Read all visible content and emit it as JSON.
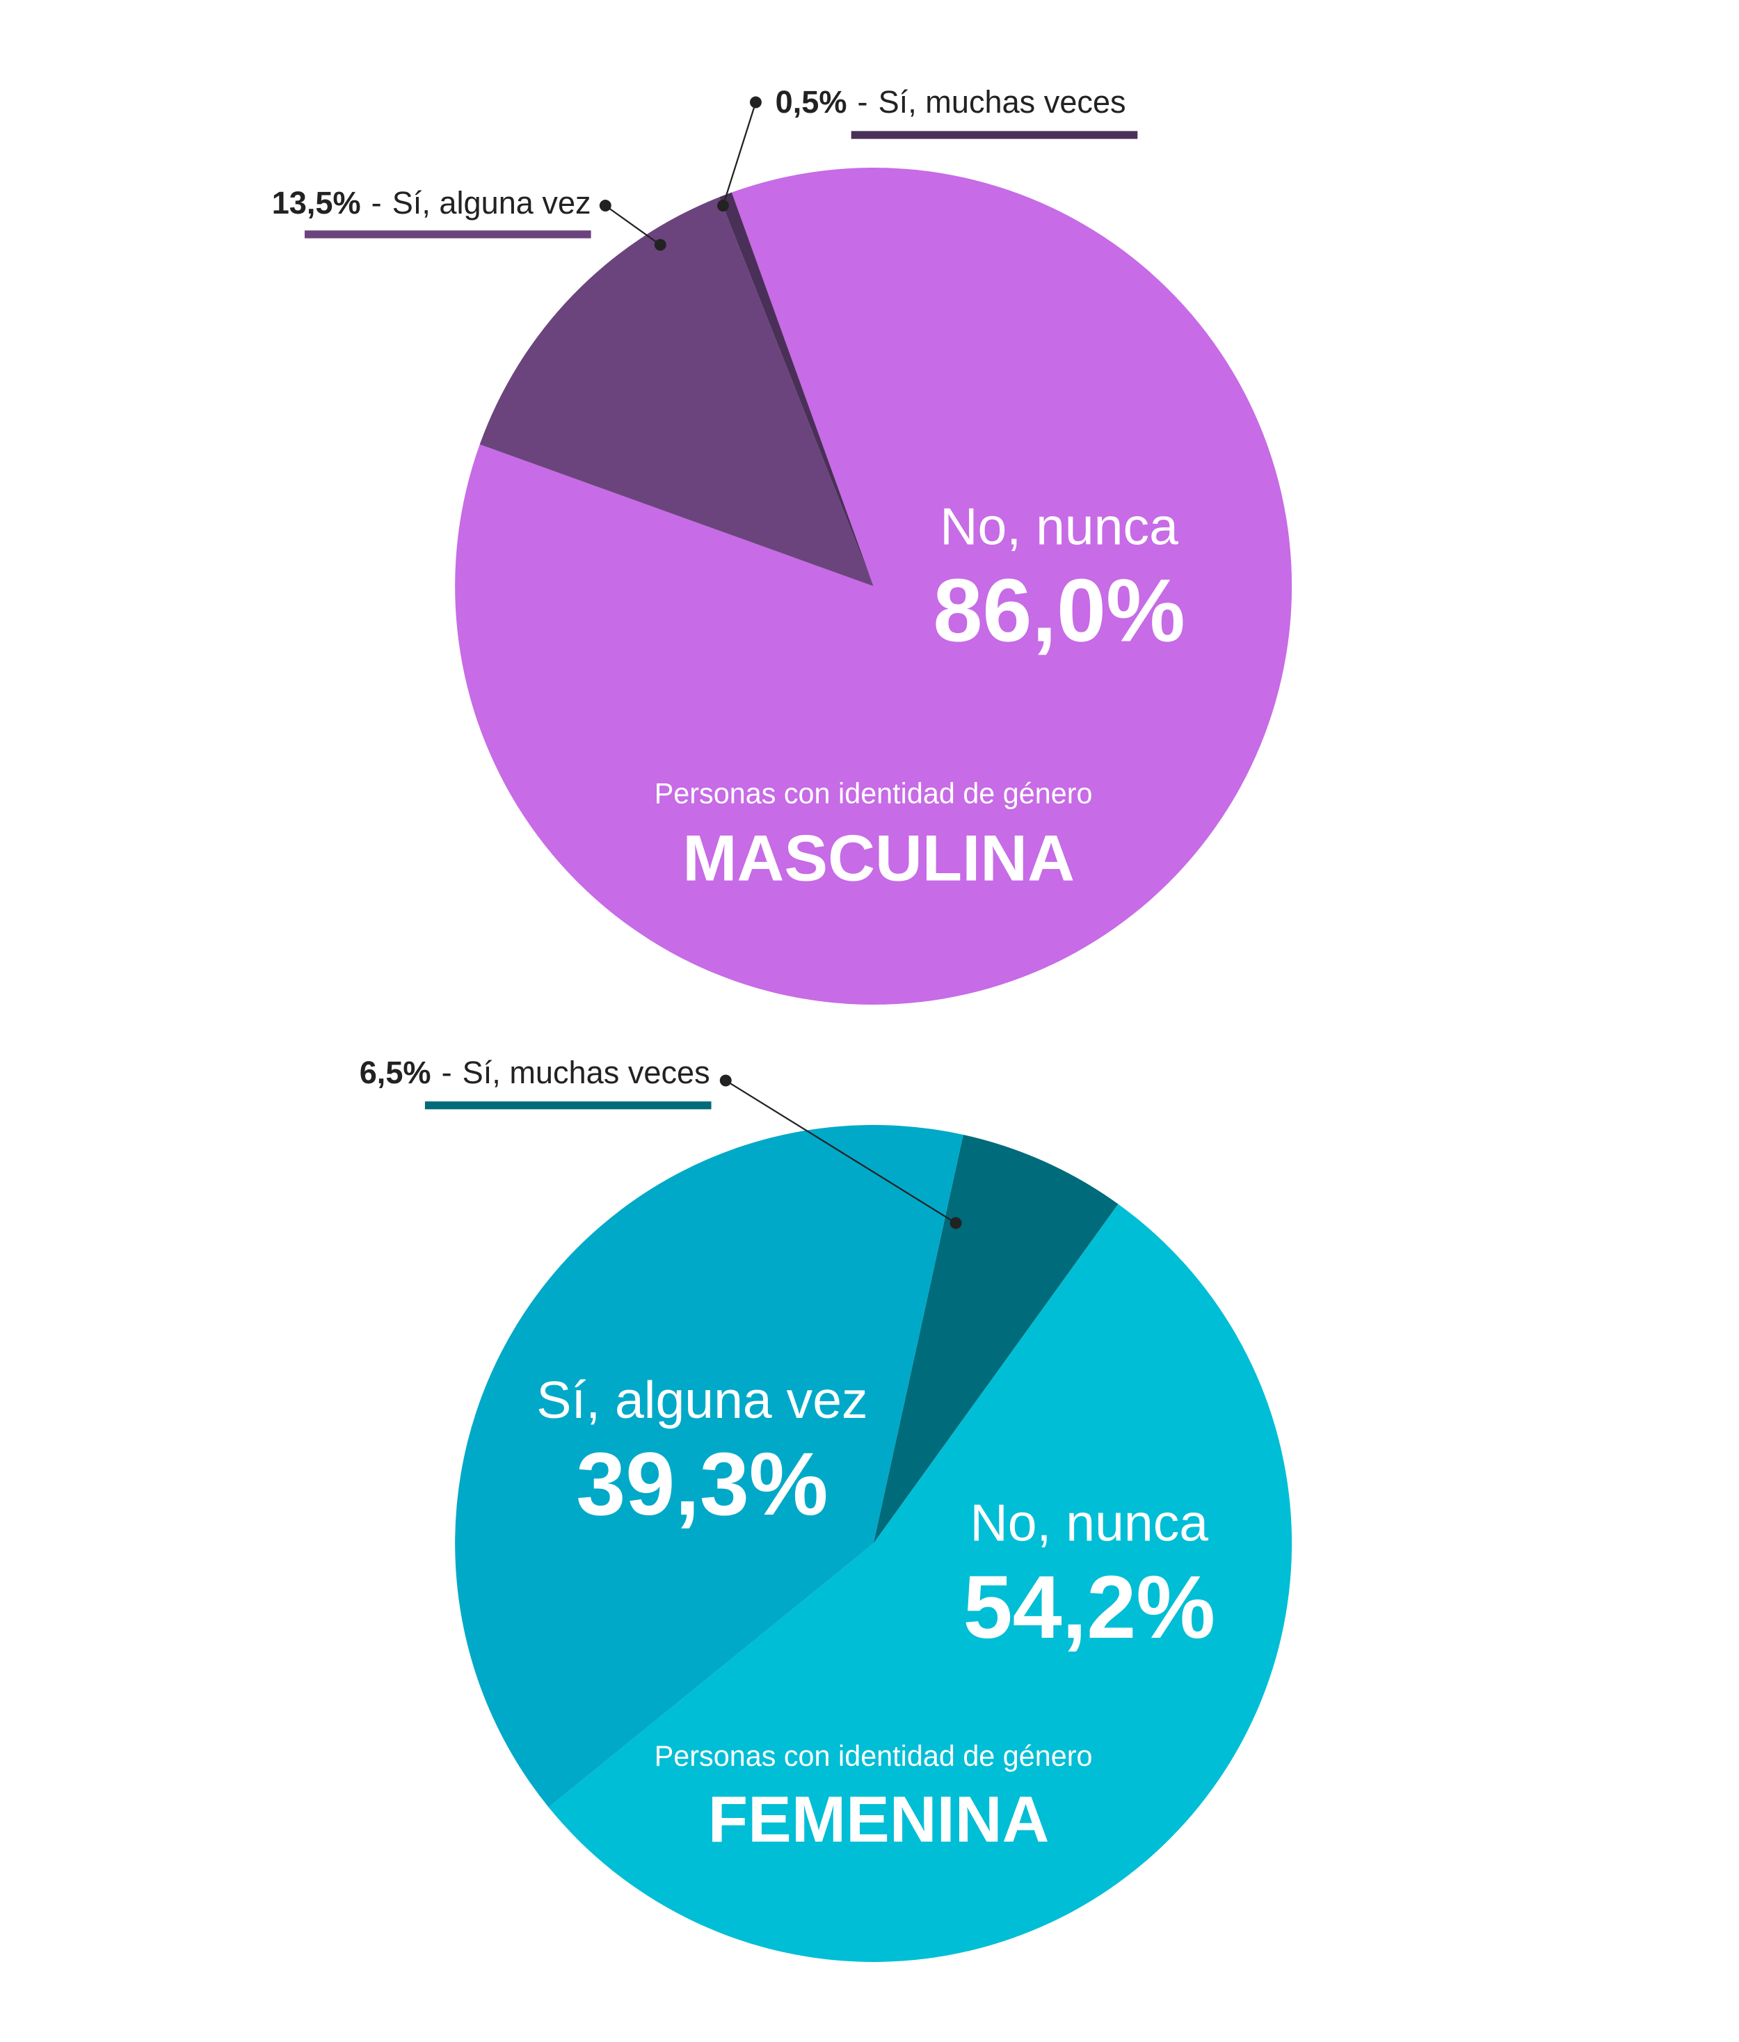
{
  "chart_data": [
    {
      "type": "pie",
      "subtitle": "Personas con identidad de género",
      "title": "MASCULINA",
      "label_separator": "-",
      "categories": [
        "No, nunca",
        "Sí, alguna vez",
        "Sí, muchas veces"
      ],
      "values": [
        86.0,
        13.5,
        0.5
      ],
      "value_labels": [
        "86,0%",
        "13,5%",
        "0,5%"
      ],
      "colors": [
        "#c76be6",
        "#6b447e",
        "#4a3058"
      ]
    },
    {
      "type": "pie",
      "subtitle": "Personas con identidad de género",
      "title": "FEMENINA",
      "label_separator": "-",
      "categories": [
        "Sí, muchas veces",
        "No, nunca",
        "Sí, alguna vez"
      ],
      "values": [
        6.5,
        54.2,
        39.3
      ],
      "value_labels": [
        "6,5%",
        "54,2%",
        "39,3%"
      ],
      "colors": [
        "#006b7a",
        "#00bed5",
        "#00a9c8"
      ]
    }
  ]
}
